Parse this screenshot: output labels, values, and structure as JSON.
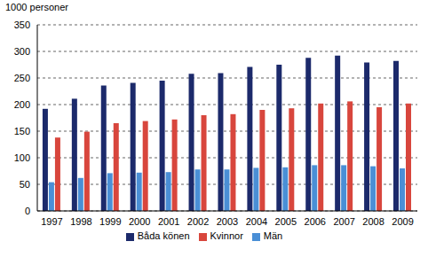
{
  "chart_data": {
    "type": "bar",
    "y_label": "1000 personer",
    "categories": [
      "1997",
      "1998",
      "1999",
      "2000",
      "2001",
      "2002",
      "2003",
      "2004",
      "2005",
      "2006",
      "2007",
      "2008",
      "2009"
    ],
    "series": [
      {
        "name": "Båda könen",
        "color": "#1c2a6b",
        "values": [
          192,
          211,
          236,
          241,
          245,
          258,
          259,
          271,
          275,
          288,
          292,
          279,
          282
        ]
      },
      {
        "name": "Män",
        "color": "#4a8fd6",
        "values": [
          54,
          62,
          71,
          72,
          73,
          78,
          78,
          81,
          82,
          86,
          86,
          84,
          80
        ]
      },
      {
        "name": "Kvinnor",
        "color": "#d8463d",
        "values": [
          138,
          149,
          165,
          169,
          172,
          180,
          182,
          190,
          193,
          202,
          206,
          195,
          202
        ]
      }
    ],
    "ylim": [
      0,
      350
    ],
    "yticks": [
      0,
      50,
      100,
      150,
      200,
      250,
      300,
      350
    ],
    "grid": true,
    "legend": "bottom"
  }
}
